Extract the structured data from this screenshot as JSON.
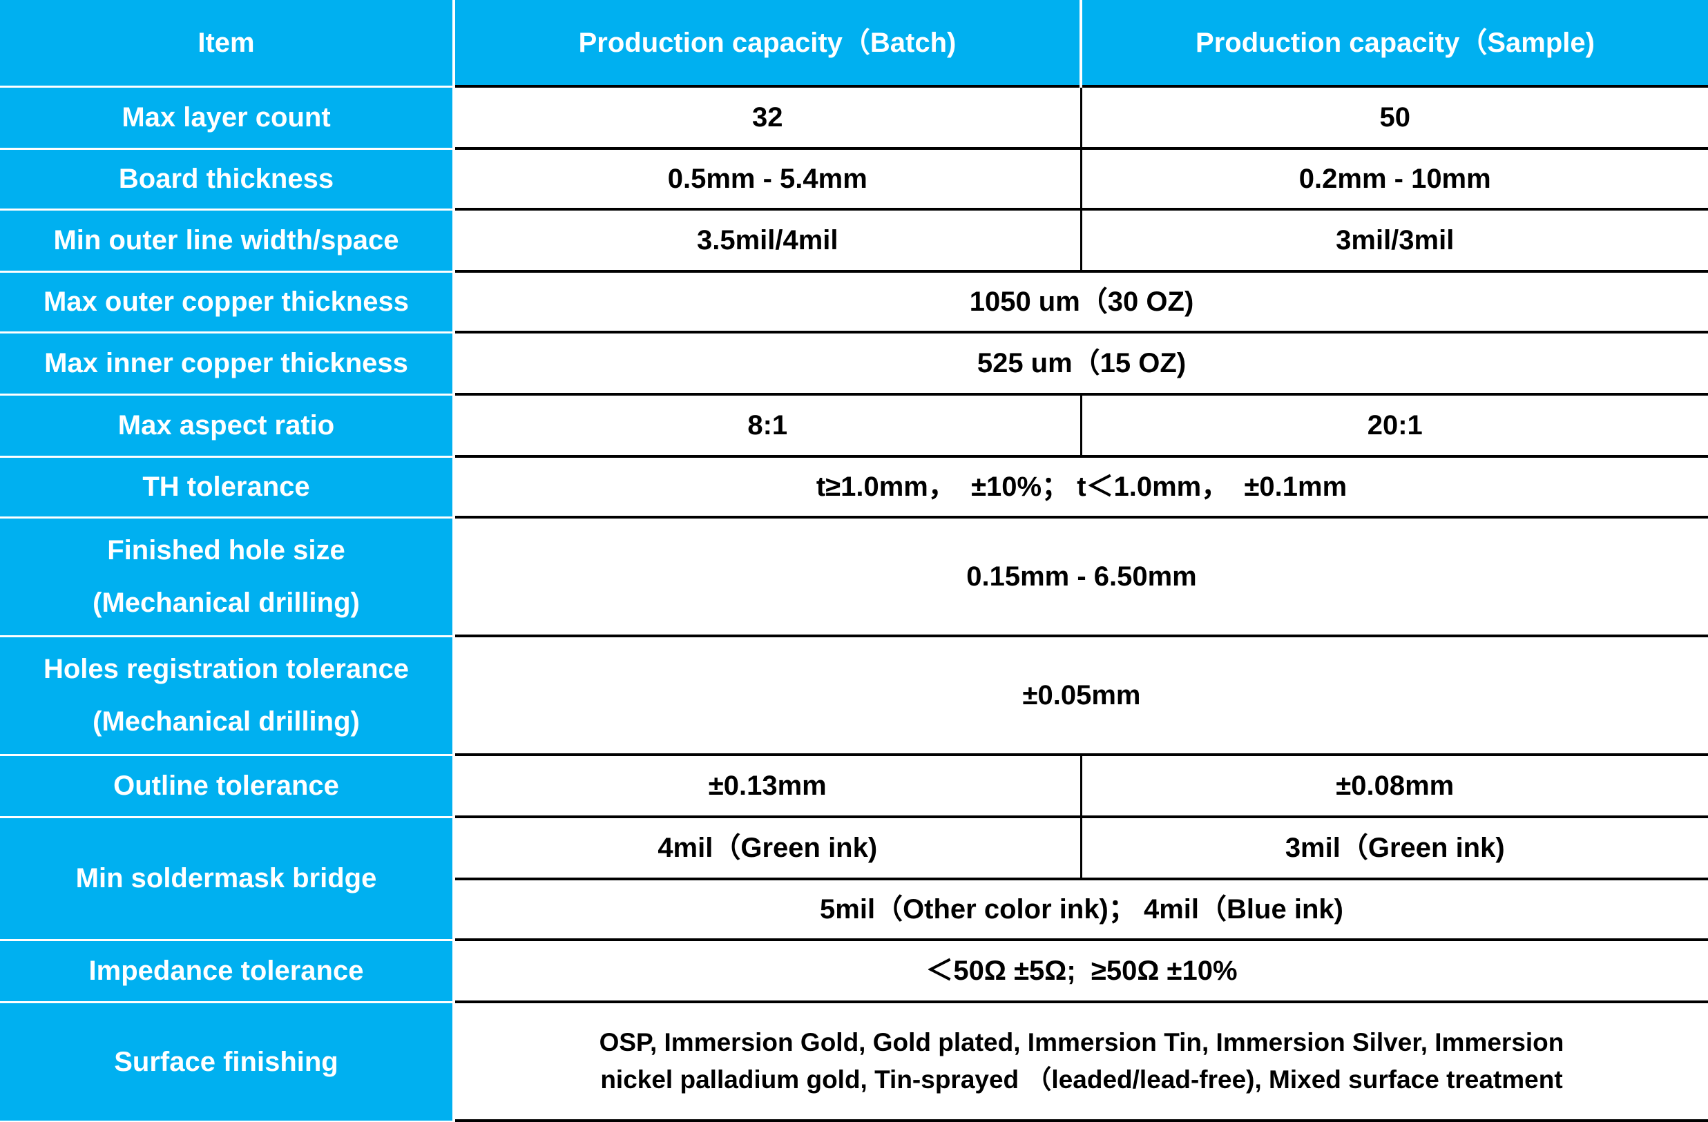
{
  "colors": {
    "header_bg": "#00B0F0",
    "header_text": "#FFFFFF",
    "value_text": "#000000"
  },
  "header": {
    "item": "Item",
    "batch": "Production capacity（Batch)",
    "sample": "Production capacity（Sample)"
  },
  "rows": {
    "max_layer": {
      "label": "Max layer count",
      "batch": "32",
      "sample": "50"
    },
    "board_thickness": {
      "label": "Board thickness",
      "batch": "0.5mm - 5.4mm",
      "sample": "0.2mm - 10mm"
    },
    "min_outer_line": {
      "label": "Min outer line width/space",
      "batch": "3.5mil/4mil",
      "sample": "3mil/3mil"
    },
    "max_outer_copper": {
      "label": "Max outer copper thickness",
      "value": "1050 um（30 OZ)"
    },
    "max_inner_copper": {
      "label": "Max inner copper thickness",
      "value": "525 um（15 OZ)"
    },
    "max_aspect": {
      "label": "Max aspect ratio",
      "batch": "8:1",
      "sample": "20:1"
    },
    "th_tolerance": {
      "label": "TH tolerance",
      "value": "t≥1.0mm，  ±10%； t＜1.0mm，  ±0.1mm"
    },
    "finished_hole": {
      "label_line1": "Finished hole size",
      "label_line2": "(Mechanical drilling)",
      "value": "0.15mm - 6.50mm"
    },
    "holes_registration": {
      "label_line1": "Holes registration tolerance",
      "label_line2": "(Mechanical drilling)",
      "value": "±0.05mm"
    },
    "outline_tolerance": {
      "label": "Outline tolerance",
      "batch": "±0.13mm",
      "sample": "±0.08mm"
    },
    "soldermask": {
      "label": "Min soldermask bridge",
      "batch": "4mil（Green ink)",
      "sample": "3mil（Green ink)",
      "other": "5mil（Other color ink)； 4mil（Blue ink)"
    },
    "impedance": {
      "label": "Impedance tolerance",
      "value": "＜50Ω ±5Ω;  ≥50Ω ±10%"
    },
    "surface": {
      "label": "Surface finishing",
      "value_line1": "OSP, Immersion Gold, Gold plated, Immersion Tin, Immersion Silver, Immersion",
      "value_line2": "nickel palladium gold, Tin-sprayed （leaded/lead-free), Mixed surface treatment"
    }
  }
}
